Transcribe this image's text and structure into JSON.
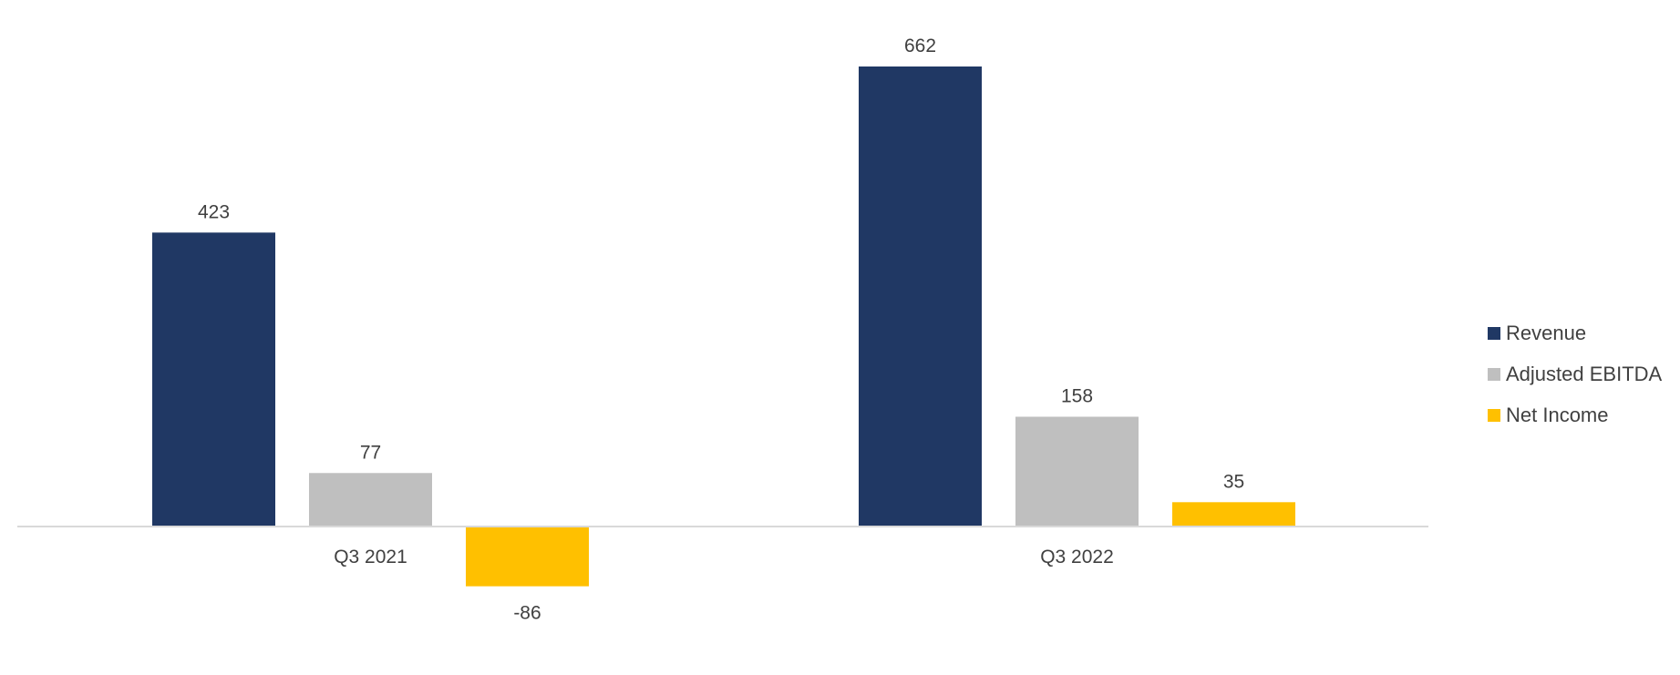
{
  "chart_data": {
    "type": "bar",
    "categories": [
      "Q3 2021",
      "Q3 2022"
    ],
    "series": [
      {
        "name": "Revenue",
        "values": [
          423,
          662
        ],
        "color": "#203864"
      },
      {
        "name": "Adjusted EBITDA",
        "values": [
          77,
          158
        ],
        "color": "#BFBFBF"
      },
      {
        "name": "Net Income",
        "values": [
          -86,
          35
        ],
        "color": "#FFC000"
      }
    ],
    "title": "",
    "xlabel": "",
    "ylabel": "",
    "data_labels": true,
    "grid": false,
    "legend_position": "right"
  }
}
